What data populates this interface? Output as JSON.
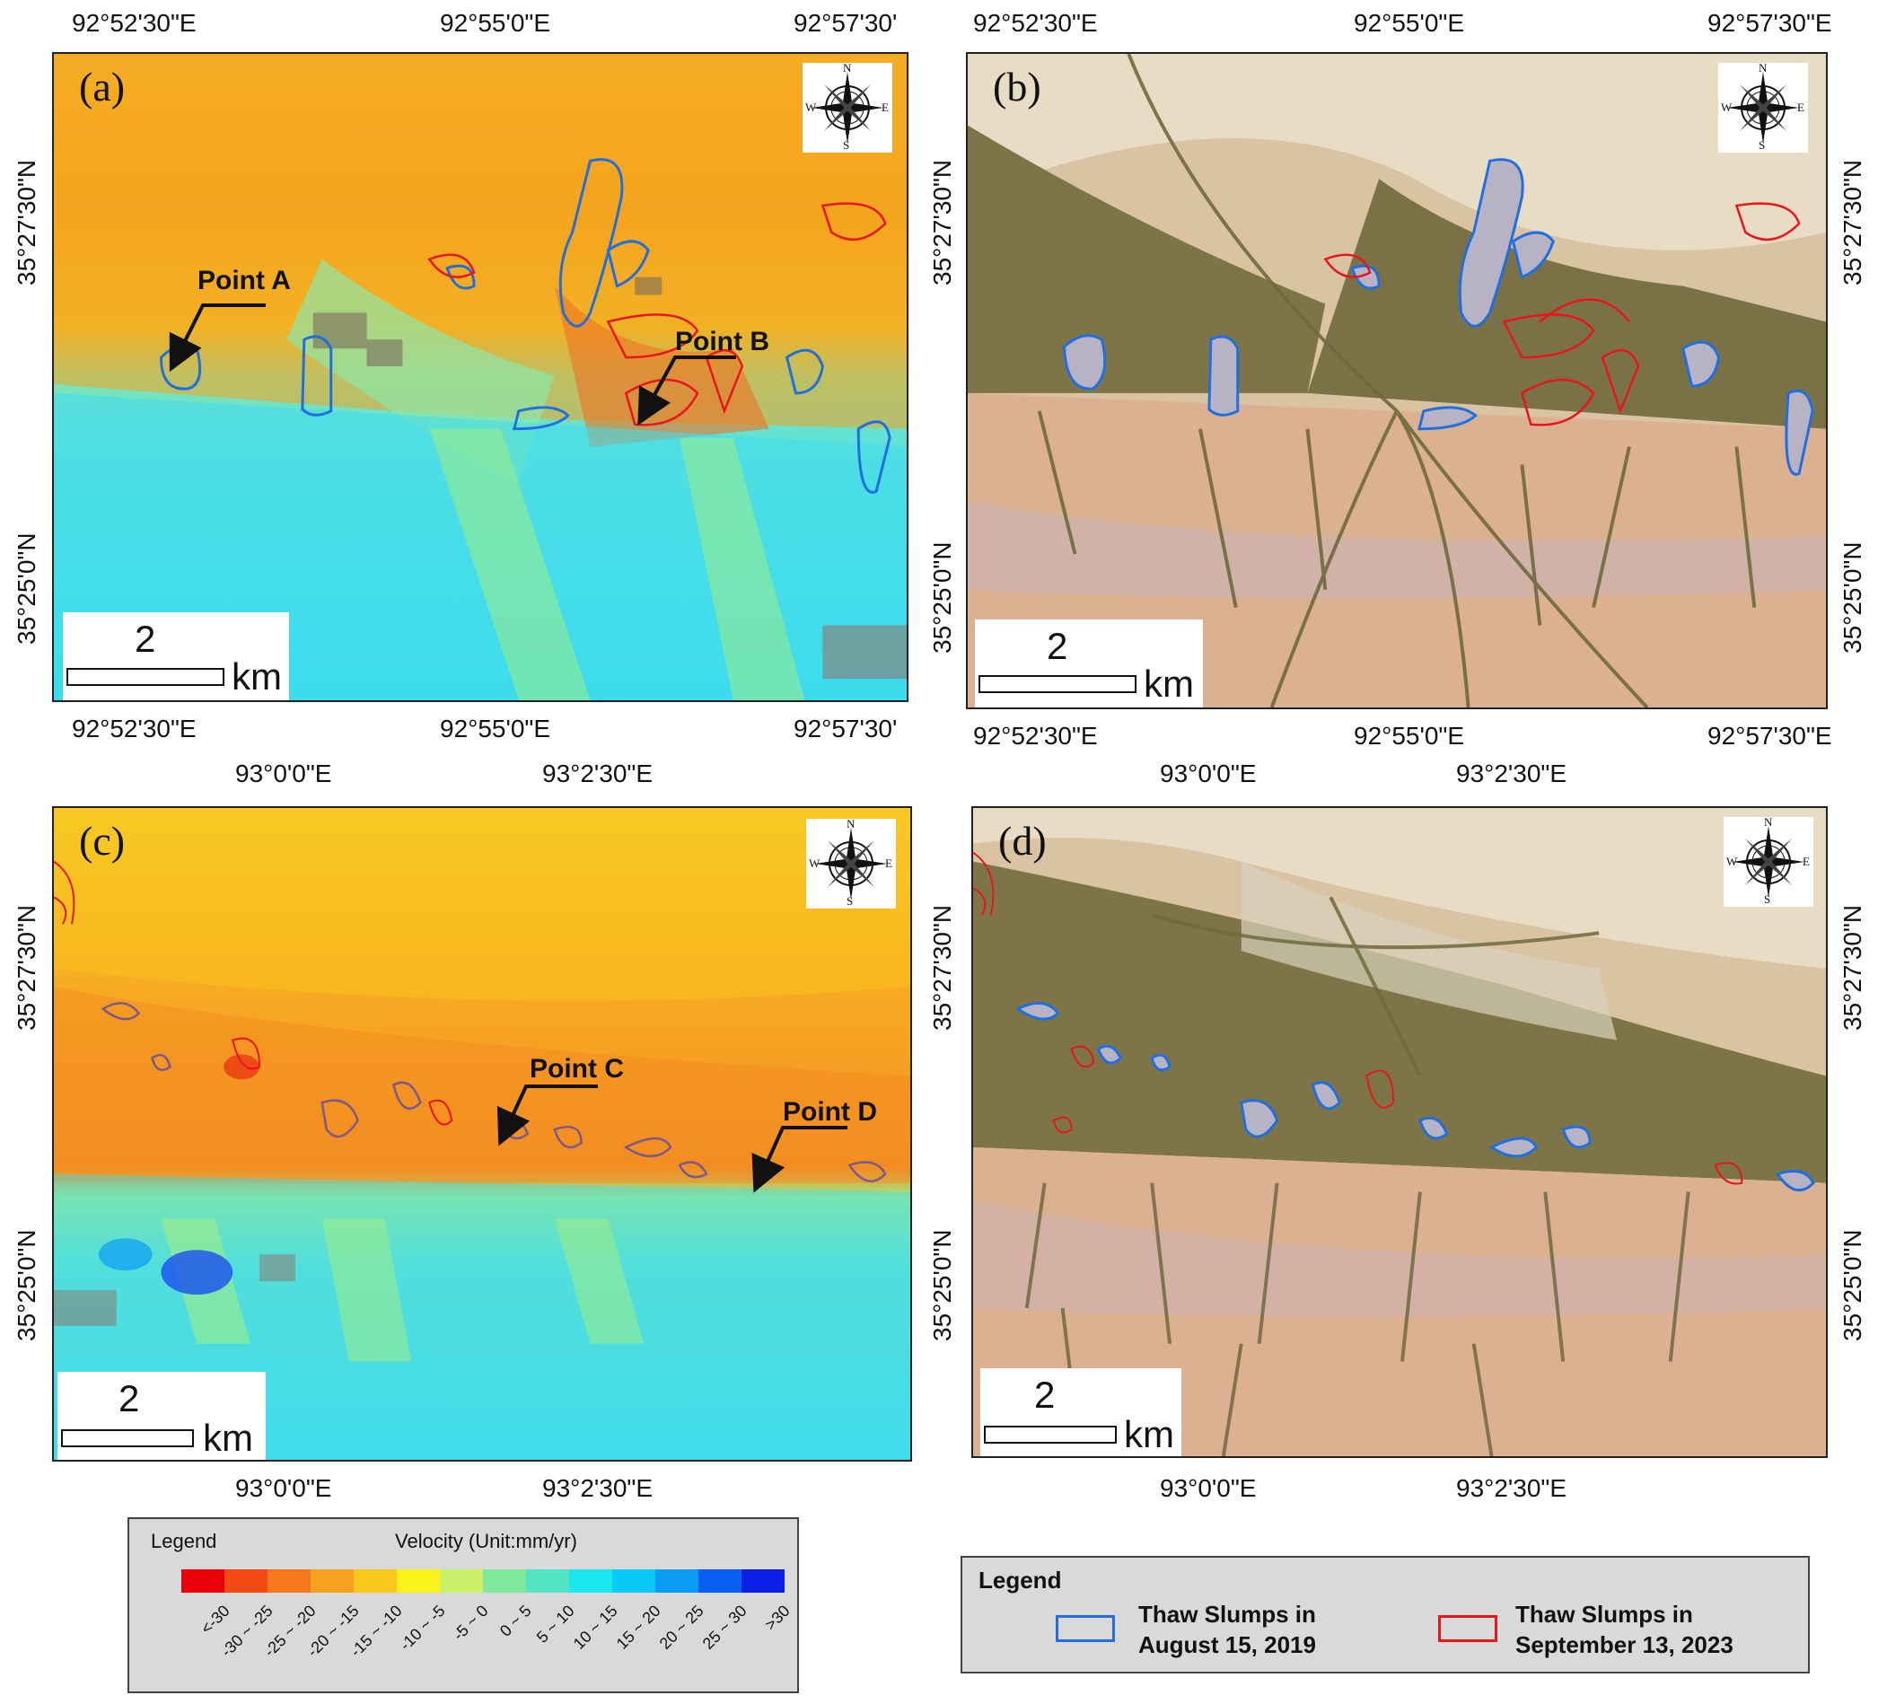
{
  "panels": {
    "a": {
      "label": "(a)",
      "scale_num": "2",
      "scale_unit": "km",
      "top_ticks": [
        "92°52'30\"E",
        "92°55'0\"E",
        "92°57'30'"
      ],
      "bottom_ticks": [
        "92°52'30\"E",
        "92°55'0\"E",
        "92°57'30'"
      ],
      "left_ticks": [
        "35°27'30\"N",
        "35°25'0\"N"
      ]
    },
    "b": {
      "label": "(b)",
      "scale_num": "2",
      "scale_unit": "km",
      "top_ticks": [
        "92°52'30\"E",
        "92°55'0\"E",
        "92°57'30\"E"
      ],
      "bottom_ticks": [
        "92°52'30\"E",
        "92°55'0\"E",
        "92°57'30\"E"
      ],
      "left_ticks": [
        "35°27'30\"N",
        "35°25'0\"N"
      ],
      "right_ticks": [
        "35°27'30\"N",
        "35°25'0\"N"
      ]
    },
    "c": {
      "label": "(c)",
      "scale_num": "2",
      "scale_unit": "km",
      "top_ticks": [
        "93°0'0\"E",
        "93°2'30\"E"
      ],
      "bottom_ticks": [
        "93°0'0\"E",
        "93°2'30\"E"
      ],
      "left_ticks": [
        "35°27'30\"N",
        "35°25'0\"N"
      ]
    },
    "d": {
      "label": "(d)",
      "scale_num": "2",
      "scale_unit": "km",
      "top_ticks": [
        "93°0'0\"E",
        "93°2'30\"E"
      ],
      "bottom_ticks": [
        "93°0'0\"E",
        "93°2'30\"E"
      ],
      "left_ticks": [
        "35°27'30\"N",
        "35°25'0\"N"
      ],
      "right_ticks": [
        "35°27'30\"N",
        "35°25'0\"N"
      ]
    }
  },
  "compass": {
    "n": "N",
    "s": "S",
    "w": "W",
    "e": "E"
  },
  "points": {
    "a": "Point A",
    "b": "Point B",
    "c": "Point C",
    "d": "Point D"
  },
  "velocity_legend": {
    "title": "Legend",
    "velocity_title": "Velocity (Unit:mm/yr)",
    "classes": [
      {
        "label": "<-30",
        "color": "#e8000b"
      },
      {
        "label": "-30 ~ -25",
        "color": "#f04a12"
      },
      {
        "label": "-25 ~ -20",
        "color": "#f5781c"
      },
      {
        "label": "-20 ~ -15",
        "color": "#f7a21f"
      },
      {
        "label": "-15 ~ -10",
        "color": "#f9c81a"
      },
      {
        "label": "-10 ~ -5",
        "color": "#fbf21c"
      },
      {
        "label": "-5 ~ 0",
        "color": "#c9f26a"
      },
      {
        "label": "0 ~ 5",
        "color": "#7fe89c"
      },
      {
        "label": "5 ~ 10",
        "color": "#52e4c4"
      },
      {
        "label": "10 ~ 15",
        "color": "#1ce7f0"
      },
      {
        "label": "15 ~ 20",
        "color": "#0bc9f7"
      },
      {
        "label": "20 ~ 25",
        "color": "#0a9cf5"
      },
      {
        "label": "25 ~ 30",
        "color": "#0a5ef0"
      },
      {
        "label": ">30",
        "color": "#0a1ee6"
      }
    ]
  },
  "slump_legend": {
    "title": "Legend",
    "items": [
      {
        "line1": "Thaw Slumps in",
        "line2": "August 15, 2019",
        "color": "#1f6fe0"
      },
      {
        "line1": "Thaw Slumps in",
        "line2": "September 13, 2023",
        "color": "#e8151b"
      }
    ]
  },
  "colors": {
    "slump_2019": "#1f6fe0",
    "slump_2023": "#e8151b"
  }
}
